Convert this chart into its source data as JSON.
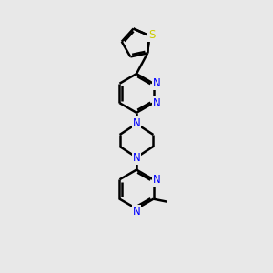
{
  "background_color": "#e8e8e8",
  "bond_color": "#000000",
  "nitrogen_color": "#0000ff",
  "sulfur_color": "#cccc00",
  "line_width": 1.8,
  "dbo": 0.07,
  "figsize": [
    3.0,
    3.0
  ],
  "dpi": 100,
  "xlim": [
    0,
    10
  ],
  "ylim": [
    0,
    10
  ],
  "font_size": 8.5
}
